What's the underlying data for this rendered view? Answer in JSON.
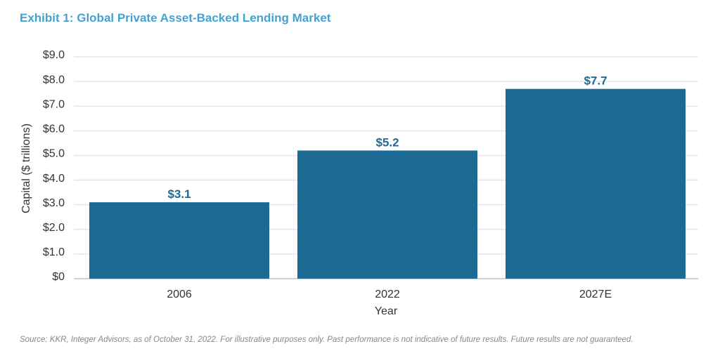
{
  "chart_data": {
    "type": "bar",
    "title": "Exhibit 1: Global Private Asset-Backed Lending Market",
    "categories": [
      "2006",
      "2022",
      "2027E"
    ],
    "values": [
      3.1,
      5.2,
      7.7
    ],
    "data_labels": [
      "$3.1",
      "$5.2",
      "$7.7"
    ],
    "xlabel": "Year",
    "ylabel": "Capital ($ trillions)",
    "ylim": [
      0,
      9
    ],
    "yticks": [
      0,
      1,
      2,
      3,
      4,
      5,
      6,
      7,
      8,
      9
    ],
    "ytick_labels": [
      "$0",
      "$1.0",
      "$2.0",
      "$3.0",
      "$4.0",
      "$5.0",
      "$6.0",
      "$7.0",
      "$8.0",
      "$9.0"
    ],
    "grid": true,
    "bar_color": "#1d6b94",
    "title_color": "#45a2cf"
  },
  "source": "Source: KKR, Integer Advisors, as of October 31, 2022. For illustrative purposes only. Past performance is not indicative of future results. Future results are not guaranteed."
}
